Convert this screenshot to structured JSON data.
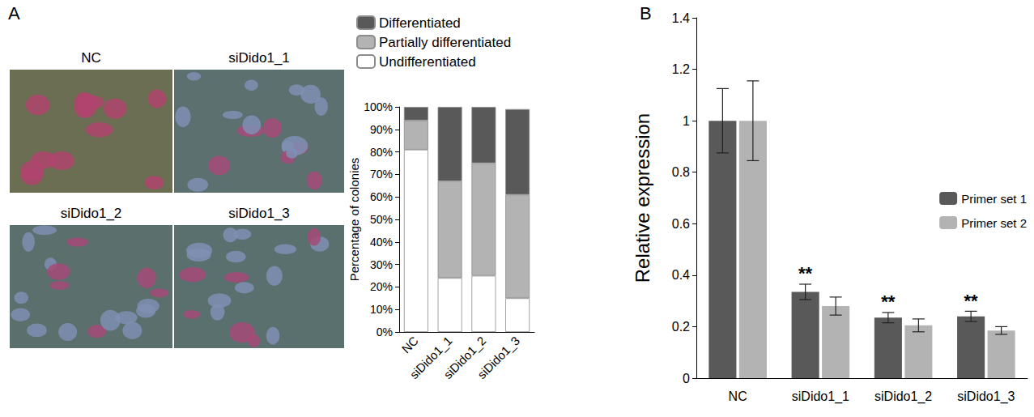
{
  "micrographs": {
    "panel": "A",
    "labels": [
      "NC",
      "siDido1_1",
      "siDido1_2",
      "siDido1_3"
    ]
  },
  "chart_data": [
    {
      "panel": "A",
      "type": "bar",
      "stacked": true,
      "categories": [
        "NC",
        "siDido1_1",
        "siDido1_2",
        "siDido1_3"
      ],
      "series": [
        {
          "name": "Undifferentiated",
          "color": "#ffffff",
          "values": [
            81,
            24,
            25,
            15
          ]
        },
        {
          "name": "Partially differentiated",
          "color": "#b3b3b3",
          "values": [
            13,
            43,
            50,
            46
          ]
        },
        {
          "name": "Differentiated",
          "color": "#595959",
          "values": [
            6,
            33,
            25,
            38
          ]
        }
      ],
      "ylabel": "Percentage of colonies",
      "ylim": [
        0,
        100
      ],
      "yticks": [
        {
          "value": 0,
          "label": "0%"
        },
        {
          "value": 10,
          "label": "10%"
        },
        {
          "value": 20,
          "label": "20%"
        },
        {
          "value": 30,
          "label": "30%"
        },
        {
          "value": 40,
          "label": "40%"
        },
        {
          "value": 50,
          "label": "50%"
        },
        {
          "value": 60,
          "label": "60%"
        },
        {
          "value": 70,
          "label": "70%"
        },
        {
          "value": 80,
          "label": "80%"
        },
        {
          "value": 90,
          "label": "90%"
        },
        {
          "value": 100,
          "label": "100%"
        }
      ],
      "grid": false,
      "legend": "top"
    },
    {
      "panel": "B",
      "type": "bar",
      "ylabel": "Relative expression",
      "categories": [
        "NC",
        "siDido1_1",
        "siDido1_2",
        "siDido1_3"
      ],
      "series": [
        {
          "name": "Primer set 1",
          "color": "#595959",
          "values": [
            1.0,
            0.335,
            0.235,
            0.24
          ],
          "errors": [
            0.125,
            0.03,
            0.02,
            0.02
          ]
        },
        {
          "name": "Primer set 2",
          "color": "#b3b3b3",
          "values": [
            1.0,
            0.28,
            0.205,
            0.185
          ],
          "errors": [
            0.155,
            0.035,
            0.025,
            0.015
          ]
        }
      ],
      "annotations": [
        {
          "text": "**",
          "category": "siDido1_1",
          "series": "Primer set 1"
        },
        {
          "text": "**",
          "category": "siDido1_2",
          "series": "Primer set 1"
        },
        {
          "text": "**",
          "category": "siDido1_3",
          "series": "Primer set 1"
        }
      ],
      "ylim": [
        0,
        1.4
      ],
      "yticks": [
        0,
        0.2,
        0.4,
        0.6,
        0.8,
        1,
        1.2,
        1.4
      ],
      "grid": false,
      "legend": "right"
    }
  ]
}
